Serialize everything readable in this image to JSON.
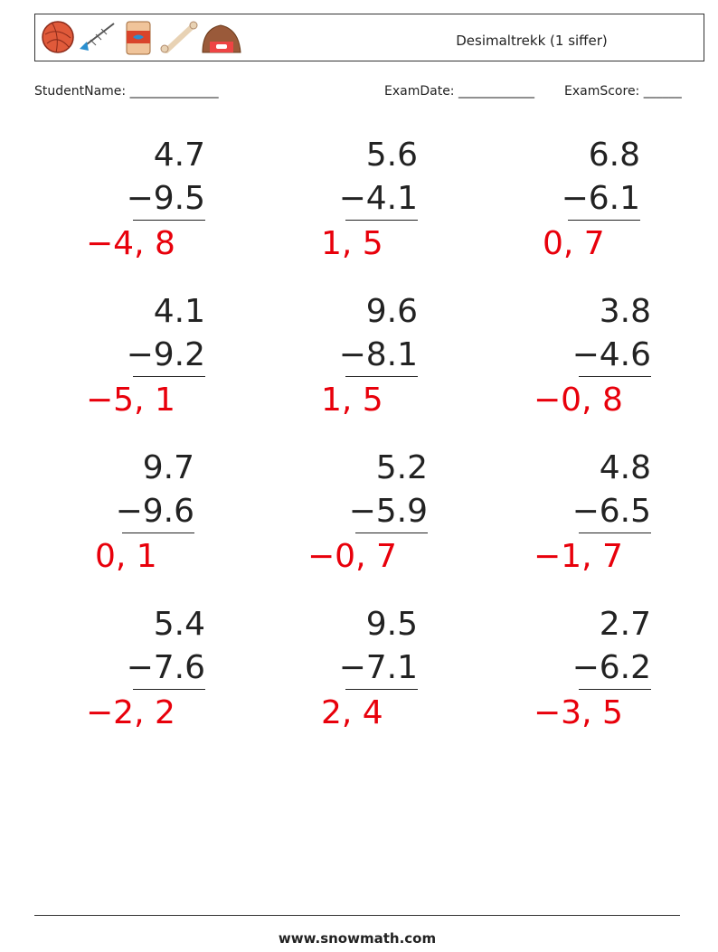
{
  "header": {
    "title": "Desimaltrekk (1 siffer)"
  },
  "fields": {
    "student_name": "StudentName: ______________",
    "exam_date": "ExamDate: ____________",
    "exam_score": "ExamScore: ______"
  },
  "problems": [
    {
      "top": "4.7",
      "bottom": "−9.5",
      "answer": "−4, 8"
    },
    {
      "top": "5.6",
      "bottom": "−4.1",
      "answer": "1, 5"
    },
    {
      "top": "6.8",
      "bottom": "−6.1",
      "answer": "0, 7"
    },
    {
      "top": "4.1",
      "bottom": "−9.2",
      "answer": "−5, 1"
    },
    {
      "top": "9.6",
      "bottom": "−8.1",
      "answer": "1, 5"
    },
    {
      "top": "3.8",
      "bottom": "−4.6",
      "answer": "−0, 8"
    },
    {
      "top": "9.7",
      "bottom": "−9.6",
      "answer": "0, 1"
    },
    {
      "top": "5.2",
      "bottom": "−5.9",
      "answer": "−0, 7"
    },
    {
      "top": "4.8",
      "bottom": "−6.5",
      "answer": "−1, 7"
    },
    {
      "top": "5.4",
      "bottom": "−7.6",
      "answer": "−2, 2"
    },
    {
      "top": "9.5",
      "bottom": "−7.1",
      "answer": "2, 4"
    },
    {
      "top": "2.7",
      "bottom": "−6.2",
      "answer": "−3, 5"
    }
  ],
  "footer": {
    "url": "www.snowmath.com"
  }
}
